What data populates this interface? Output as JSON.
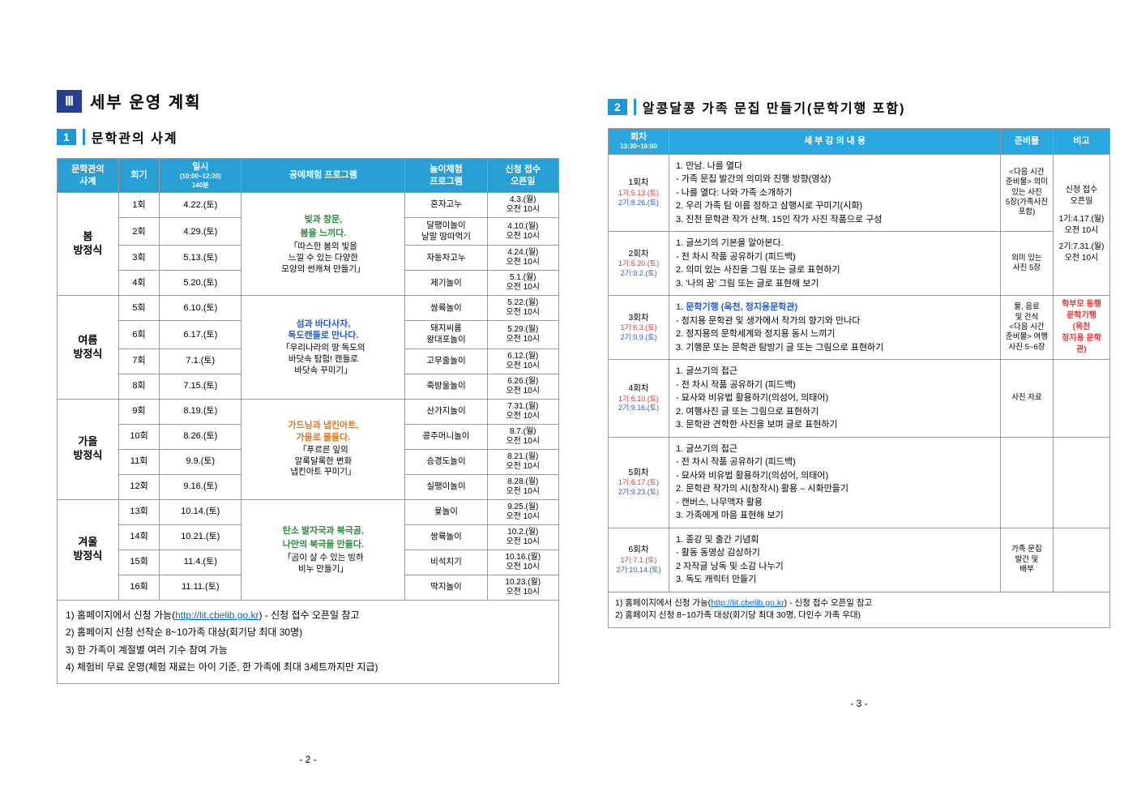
{
  "left": {
    "hdr_num": "Ⅲ",
    "hdr_title": "세부 운영 계획",
    "sub_num": "1",
    "sub_title": "문학관의 사계",
    "cols": {
      "c1": "문학관의\n사계",
      "c2": "회기",
      "c3": "일시",
      "c3sub": "(10:00~12:20)\n140분",
      "c4": "공예체험 프로그램",
      "c5": "놀이체험\n프로그램",
      "c6": "신청 접수\n오픈일"
    },
    "seasons": [
      {
        "name": "봄\n방정식",
        "craft_title": "빛과 창문,\n봄을 느끼다.",
        "craft_sub": "「따스한 봄의 빛을\n느낄 수 있는 다양한\n모양의 썬캐쳐 만들기」",
        "craft_class": "craft",
        "rows": [
          {
            "r": "1회",
            "d": "4.22.(토)",
            "p": "혼자고누",
            "o": "4.3.(월)\n오전 10시"
          },
          {
            "r": "2회",
            "d": "4.29.(토)",
            "p": "달팽이놀이\n날말 땅따먹기",
            "o": "4.10.(월)\n오전 10시"
          },
          {
            "r": "3회",
            "d": "5.13.(토)",
            "p": "자동차고누",
            "o": "4.24.(월)\n오전 10시"
          },
          {
            "r": "4회",
            "d": "5.20.(토)",
            "p": "제기놀이",
            "o": "5.1.(월)\n오전 10시"
          }
        ]
      },
      {
        "name": "여름\n방정식",
        "craft_title": "섬과 바다사자,\n독도캔들로 만나다.",
        "craft_sub": "「우리나라의 땅 독도의\n바닷속 탐험! 캔들로\n바닷속 꾸미기」",
        "craft_class": "craft-summer",
        "rows": [
          {
            "r": "5회",
            "d": "6.10.(토)",
            "p": "쌍륙놀이",
            "o": "5.22.(월)\n오전 10시"
          },
          {
            "r": "6회",
            "d": "6.17.(토)",
            "p": "돼지씨름\n왕대포놀이",
            "o": "5.29.(월)\n오전 10시"
          },
          {
            "r": "7회",
            "d": "7.1.(토)",
            "p": "고무줄놀이",
            "o": "6.12.(월)\n오전 10시"
          },
          {
            "r": "8회",
            "d": "7.15.(토)",
            "p": "죽방울놀이",
            "o": "6.26.(월)\n오전 10시"
          }
        ]
      },
      {
        "name": "가을\n방정식",
        "craft_title": "가드닝과 냅킨아트,\n가을로 물들다.",
        "craft_sub": "「푸르른 잎의\n알록달록한 변화\n냅킨아트 꾸미기」",
        "craft_class": "craft-fall",
        "rows": [
          {
            "r": "9회",
            "d": "8.19.(토)",
            "p": "산가지놀이",
            "o": "7.31.(월)\n오전 10시"
          },
          {
            "r": "10회",
            "d": "8.26.(토)",
            "p": "콩주머니놀이",
            "o": "8.7.(월)\n오전 10시"
          },
          {
            "r": "11회",
            "d": "9.9.(토)",
            "p": "승경도놀이",
            "o": "8.21.(월)\n오전 10시"
          },
          {
            "r": "12회",
            "d": "9.16.(토)",
            "p": "실팽이놀이",
            "o": "8.28.(월)\n오전 10시"
          }
        ]
      },
      {
        "name": "겨울\n방정식",
        "craft_title": "탄소 발자국과 북극곰,\n나만의 북극을 만들다.",
        "craft_sub": "「곰이 살 수 있는 빙하\n비누 만들기」",
        "craft_class": "craft",
        "rows": [
          {
            "r": "13회",
            "d": "10.14.(토)",
            "p": "윷놀이",
            "o": "9.25.(월)\n오전 10시"
          },
          {
            "r": "14회",
            "d": "10.21.(토)",
            "p": "쌍륙놀이",
            "o": "10.2.(월)\n오전 10시"
          },
          {
            "r": "15회",
            "d": "11.4.(토)",
            "p": "비석치기",
            "o": "10.16.(월)\n오전 10시"
          },
          {
            "r": "16회",
            "d": "11.11.(토)",
            "p": "딱지놀이",
            "o": "10.23.(월)\n오전 10시"
          }
        ]
      }
    ],
    "notes": {
      "n1a": "1) 홈페이지에서 신청 가능(",
      "n1link": "http://lit.cbelib.go.kr",
      "n1b": ") - 신청 접수 오픈일 참고",
      "n2": "2) 홈페이지 신청 선착순 8~10가족 대상(회기당 최대 30명)",
      "n3": "3) 한 가족이 계절별 여러 기수 참여 가능",
      "n4": "4) 체험비 무료 운영(체험 재료는 아이 기준, 한 가족에 최대 3세트까지만 지급)"
    },
    "page_num": "- 2 -"
  },
  "right": {
    "sub_num": "2",
    "sub_title": "알콩달콩 가족 문집 만들기(문학기행 포함)",
    "cols": {
      "c1": "회차",
      "c1sub": "13:30~16:00",
      "c2": "세 부 강 의 내 용",
      "c3": "준비물",
      "c4": "비고"
    },
    "sessions": [
      {
        "num": "1회차",
        "g1": "1기:5.13.(토)",
        "g2": "2기:8.26.(토)",
        "content": "1. 만남. 나를 열다\n - 가족 문집 발간의 의미와 진행 방향(영상)\n - 나를 열다: 나와 가족 소개하기\n2. 우리 가족 팀 이름 정하고 삼행시로 꾸미기(시화)\n3. 진천 문학관 작가 산책, 15인 작가 사진 작품으로 구성",
        "prep": "<다음 시간\n준비물> 의미\n있는 사진\n5장(가족사진\n포함)"
      },
      {
        "num": "2회차",
        "g1": "1기:5.20.(토)",
        "g2": "2기:9.2.(토)",
        "content": "1. 글쓰기의 기본을 알아본다.\n - 전 차시 작품 공유하기 (피드백)\n2. 의미 있는 사진을 그림 또는 글로 표현하기\n3. '나의 꿈' 그림 또는 글로 표현해 보기",
        "prep": "의미 있는\n사진 5장"
      },
      {
        "num": "3회차",
        "g1": "1기:6.3.(토)",
        "g2": "2기:9.9.(토)",
        "content_hl": "1. 문학기행 (옥천, 정지용문학관)",
        "content": " - 정지용 문학관 및 생가에서 작가의 향기와 만나다\n2. 정지용의 문학세계와 정지용 동시 느끼기\n3. 기행문 또는 문학관 탐방기 글 또는 그림으로 표현하기",
        "prep": "물, 음료\n및 간식\n<다음 시간\n준비물> 여행\n사진 5~6장",
        "remark": "학부모 동행\n문학기행\n(옥천\n정지용 문학관)"
      },
      {
        "num": "4회차",
        "g1": "1기:6.10.(토)",
        "g2": "2기:9.16.(토)",
        "content": "1. 글쓰기의 접근\n - 전 차시 작품 공유하기 (피드백)\n - 묘사와 비유법 활용하기(의성어, 의태어)\n2. 여행사진 글 또는 그림으로 표현하기\n3. 문학관 견학한 사진을 보며 글로 표현하기",
        "prep": "사진 자료"
      },
      {
        "num": "5회차",
        "g1": "1기:6.17.(토)",
        "g2": "2기:9.23.(토)",
        "content": "1. 글쓰기의 접근\n - 전 차시 작품 공유하기 (피드백)\n - 묘사와 비유법 활용하기(의성어, 의태어)\n2. 문학관 작가의 시(창작시) 활용 – 시화만들기\n - 캔버스, 나무액자 활용\n3. 가족에게 마음 표현해 보기",
        "prep": ""
      },
      {
        "num": "6회차",
        "g1": "1기:7.1.(토)",
        "g2": "2기:10.14.(토)",
        "content": "1. 종강 및 출간 기념회\n - 활동 동영상 감상하기\n2 자작글 낭독 및 소감 나누기\n3. 독도 캐릭터 만들기",
        "prep": "가족 문집\n발간 및\n배부"
      }
    ],
    "remark_col": {
      "line1": "신청 접수\n오픈일",
      "line2": "1기:4.17.(월)\n오전 10시",
      "line3": "2기:7.31.(월)\n오전 10시"
    },
    "notes": {
      "n1a": "1) 홈페이지에서 신청 가능(",
      "n1link": "http://lit.cbelib.go.kr",
      "n1b": ") - 신청 접수 오픈일 참고",
      "n2": "2) 홈페이지 신청 8~10가족 대상(회기당 최대 30명, 다인수 가족 우대)"
    },
    "page_num": "- 3 -"
  }
}
